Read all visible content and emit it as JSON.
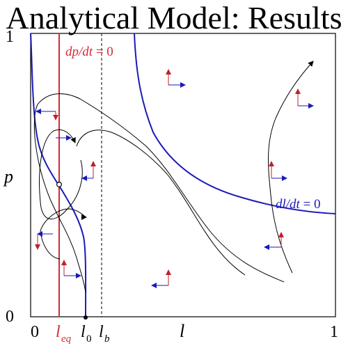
{
  "title": "Analytical Model: Results",
  "axes": {
    "y_top": "1",
    "y_bottom": "0",
    "y_label": "p",
    "x_left": "0",
    "x_right": "1",
    "x_label": "l",
    "l_eq": "l",
    "l_eq_sub": "eq",
    "l_0": "l",
    "l_0_sub": "0",
    "l_b": "l",
    "l_b_sub": "b"
  },
  "nullclines": {
    "dp_dt": "dp/dt",
    "dp_dt_value": " = 0",
    "dl_dt": "dl/dt",
    "dl_dt_value": " = 0"
  },
  "colors": {
    "dp_nullcline": "#d42a3a",
    "dl_nullcline": "#1a1ab8",
    "vector_p": "#c0202a",
    "vector_l": "#1a1ab8",
    "trajectory": "#000000"
  }
}
